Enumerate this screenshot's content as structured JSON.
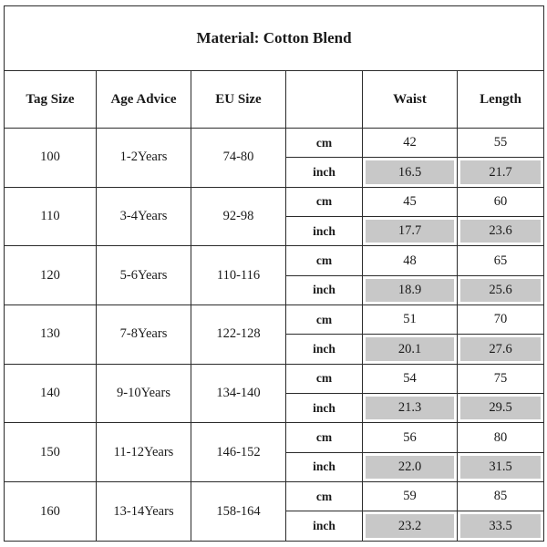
{
  "title": "Material: Cotton Blend",
  "headers": {
    "tag_size": "Tag Size",
    "age_advice": "Age Advice",
    "eu_size": "EU Size",
    "unit": "",
    "waist": "Waist",
    "length": "Length"
  },
  "units": {
    "cm": "cm",
    "inch": "inch"
  },
  "rows": [
    {
      "tag": "100",
      "age": "1-2Years",
      "eu": "74-80",
      "waist_cm": "42",
      "length_cm": "55",
      "waist_in": "16.5",
      "length_in": "21.7"
    },
    {
      "tag": "110",
      "age": "3-4Years",
      "eu": "92-98",
      "waist_cm": "45",
      "length_cm": "60",
      "waist_in": "17.7",
      "length_in": "23.6"
    },
    {
      "tag": "120",
      "age": "5-6Years",
      "eu": "110-116",
      "waist_cm": "48",
      "length_cm": "65",
      "waist_in": "18.9",
      "length_in": "25.6"
    },
    {
      "tag": "130",
      "age": "7-8Years",
      "eu": "122-128",
      "waist_cm": "51",
      "length_cm": "70",
      "waist_in": "20.1",
      "length_in": "27.6"
    },
    {
      "tag": "140",
      "age": "9-10Years",
      "eu": "134-140",
      "waist_cm": "54",
      "length_cm": "75",
      "waist_in": "21.3",
      "length_in": "29.5"
    },
    {
      "tag": "150",
      "age": "11-12Years",
      "eu": "146-152",
      "waist_cm": "56",
      "length_cm": "80",
      "waist_in": "22.0",
      "length_in": "31.5"
    },
    {
      "tag": "160",
      "age": "13-14Years",
      "eu": "158-164",
      "waist_cm": "59",
      "length_cm": "85",
      "waist_in": "23.2",
      "length_in": "33.5"
    }
  ],
  "colors": {
    "border": "#2b2b2b",
    "inch_cell_fill": "#c8c8c8",
    "background": "#ffffff"
  }
}
